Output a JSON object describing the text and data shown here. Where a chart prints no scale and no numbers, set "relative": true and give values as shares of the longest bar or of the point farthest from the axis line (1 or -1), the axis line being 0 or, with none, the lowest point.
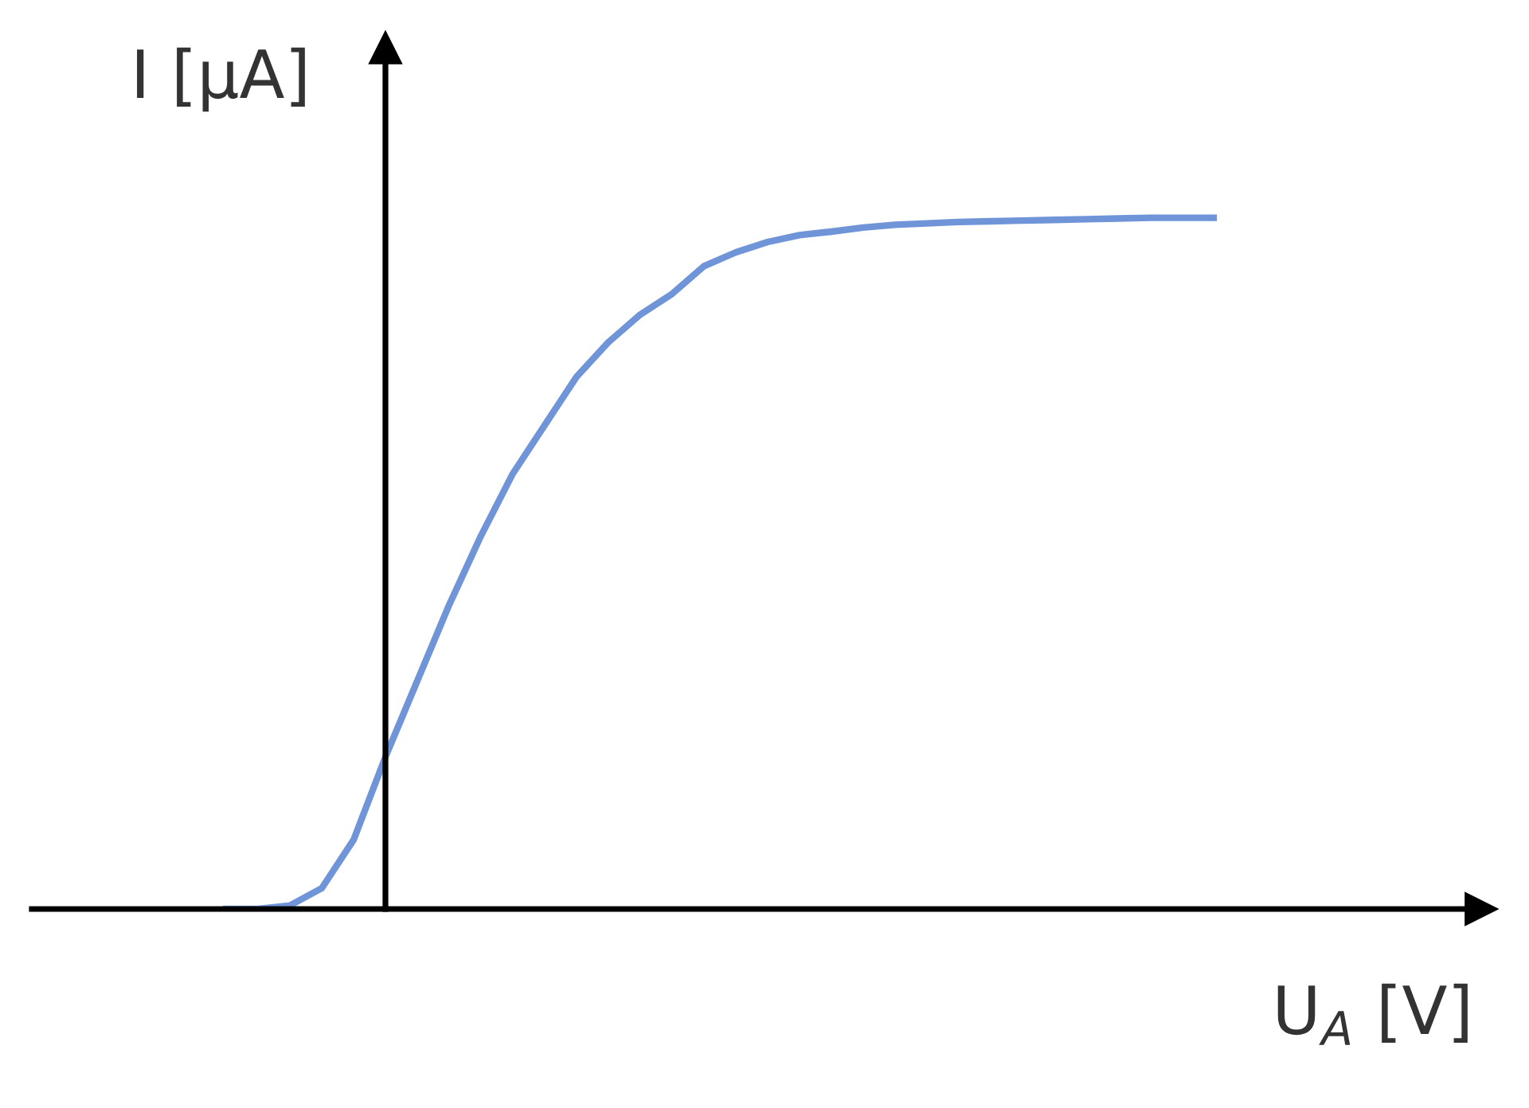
{
  "chart_data": {
    "type": "line",
    "relative": true,
    "xlabel": "U$_{A}$ [V]",
    "ylabel": "I [μA]",
    "categories": [
      null,
      null,
      null,
      null,
      null,
      null,
      null,
      null,
      null,
      null,
      null,
      null,
      null,
      null,
      null,
      null,
      null,
      null,
      null,
      null,
      null,
      null,
      null,
      null,
      null,
      null,
      null,
      null,
      null,
      null,
      null,
      null,
      null,
      null,
      null,
      null,
      null,
      null,
      null,
      null,
      null,
      null,
      null,
      null,
      null,
      null
    ],
    "series": [
      {
        "color": "#7094d8",
        "values": [
          null,
          null,
          null,
          null,
          null,
          null,
          0,
          0,
          0.005,
          0.03,
          0.1,
          0.22,
          0.33,
          0.44,
          0.54,
          0.63,
          0.7,
          0.77,
          0.82,
          0.86,
          0.89,
          0.93,
          0.95,
          0.965,
          0.975,
          0.98,
          0.986,
          0.99,
          0.992,
          0.994,
          0.995,
          0.996,
          0.997,
          0.998,
          0.999,
          1.0,
          1.0,
          1.0,
          null,
          null,
          null,
          null,
          null,
          null,
          null,
          null
        ]
      }
    ]
  }
}
